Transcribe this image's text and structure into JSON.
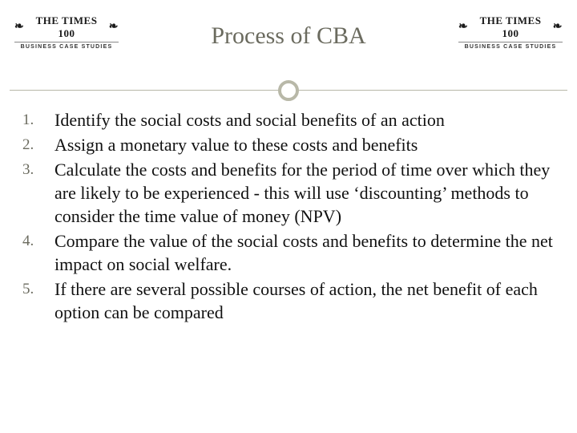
{
  "title": "Process of CBA",
  "logo": {
    "brand": "THE TIMES 100",
    "subtitle": "BUSINESS CASE STUDIES"
  },
  "colors": {
    "title_color": "#6b6b5f",
    "divider_color": "#b8b8a8",
    "text_color": "#111111",
    "number_color": "#6b6b5f",
    "background": "#ffffff"
  },
  "typography": {
    "title_fontsize": 30,
    "body_fontsize": 22,
    "number_fontsize": 19,
    "font_family": "Georgia, serif"
  },
  "steps": [
    "Identify the social costs and social benefits of an action",
    "Assign a monetary value to these costs and benefits",
    "Calculate the costs and benefits for the period of time over which they are likely to be experienced - this will use ‘discounting’ methods to consider the time value of money (NPV)",
    "Compare the value of the social costs and benefits to determine the net impact on social welfare.",
    "If there are several possible courses of action, the net benefit of each option can be compared"
  ]
}
